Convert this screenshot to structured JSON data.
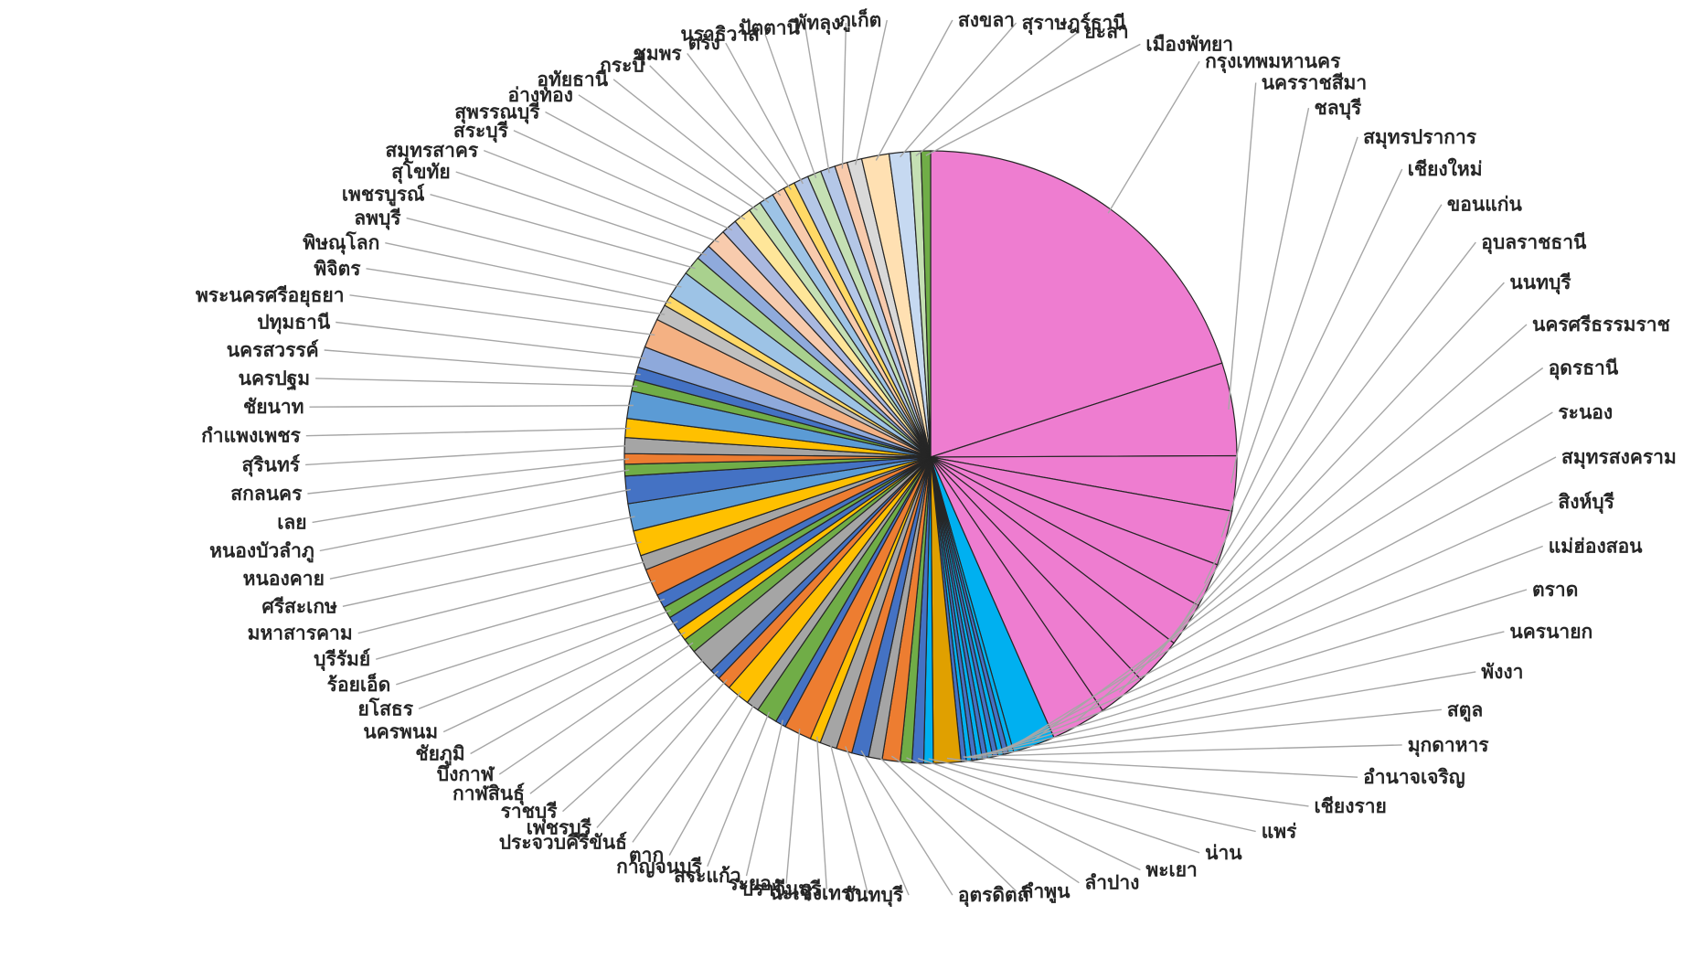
{
  "chart_data": {
    "type": "pie",
    "categories": [
      "กรุงเทพมหานคร",
      "นครราชสีมา",
      "ชลบุรี",
      "สมุทรปราการ",
      "เชียงใหม่",
      "ขอนแก่น",
      "อุบลราชธานี",
      "นนทบุรี",
      "นครศรีธรรมราช",
      "อุดรธานี",
      "ระนอง",
      "สมุทรสงคราม",
      "สิงห์บุรี",
      "แม่ฮ่องสอน",
      "ตราด",
      "นครนายก",
      "พังงา",
      "สตูล",
      "มุกดาหาร",
      "อำนาจเจริญ",
      "เชียงราย",
      "แพร่",
      "น่าน",
      "พะเยา",
      "ลำปาง",
      "ลำพูน",
      "อุตรดิตถ์",
      "จันทบุรี",
      "ฉะเชิงเทรา",
      "ปราจีนบุรี",
      "ระยอง",
      "สระแก้ว",
      "กาญจนบุรี",
      "ตาก",
      "ประจวบคีรีขันธ์",
      "เพชรบุรี",
      "ราชบุรี",
      "กาฬสินธุ์",
      "บึงกาฬ",
      "ชัยภูมิ",
      "นครพนม",
      "ยโสธร",
      "ร้อยเอ็ด",
      "บุรีรัมย์",
      "มหาสารคาม",
      "ศรีสะเกษ",
      "หนองคาย",
      "หนองบัวลำภู",
      "เลย",
      "สกลนคร",
      "สุรินทร์",
      "กำแพงเพชร",
      "ชัยนาท",
      "นครปฐม",
      "นครสวรรค์",
      "ปทุมธานี",
      "พระนครศรีอยุธยา",
      "พิจิตร",
      "พิษณุโลก",
      "ลพบุรี",
      "เพชรบูรณ์",
      "สุโขทัย",
      "สมุทรสาคร",
      "สระบุรี",
      "สุพรรณบุรี",
      "อ่างทอง",
      "อุทัยธานี",
      "กระบี่",
      "ชุมพร",
      "ตรัง",
      "นราธิวาส",
      "ปัตตานี",
      "พัทลุง",
      "ภูเก็ต",
      "สงขลา",
      "สุราษฎร์ธานี",
      "ยะลา",
      "เมืองพัทยา"
    ],
    "values": [
      18,
      4.4,
      2.6,
      2.6,
      2.1,
      2.1,
      2.3,
      2.3,
      2.6,
      2.0,
      0.25,
      0.25,
      0.25,
      0.25,
      0.25,
      0.25,
      0.25,
      0.25,
      0.25,
      0.25,
      1.3,
      0.45,
      0.55,
      0.55,
      0.85,
      0.65,
      0.8,
      0.75,
      0.8,
      0.5,
      1.3,
      0.5,
      1.0,
      0.6,
      1.1,
      0.65,
      0.5,
      1.2,
      0.7,
      0.55,
      0.7,
      0.55,
      0.65,
      1.3,
      0.7,
      1.2,
      1.3,
      1.3,
      0.55,
      0.5,
      0.75,
      0.9,
      1.3,
      0.55,
      0.6,
      1.0,
      1.4,
      0.75,
      0.5,
      1.3,
      0.9,
      0.75,
      0.95,
      0.75,
      0.85,
      0.6,
      0.7,
      0.6,
      0.55,
      0.7,
      0.65,
      0.7,
      0.6,
      0.7,
      1.3,
      1.0,
      0.5,
      0.45
    ],
    "colors": [
      "#ee7dd0",
      "#ee7dd0",
      "#ee7dd0",
      "#ee7dd0",
      "#ee7dd0",
      "#ee7dd0",
      "#ee7dd0",
      "#ee7dd0",
      "#ee7dd0",
      "#00b0f0",
      "#00b0f0",
      "#4472c4",
      "#00b0f0",
      "#4472c4",
      "#00b0f0",
      "#4472c4",
      "#00b0f0",
      "#4472c4",
      "#00b0f0",
      "#4472c4",
      "#e0a000",
      "#00b0f0",
      "#4472c4",
      "#70ad47",
      "#ed7d31",
      "#a5a5a5",
      "#4472c4",
      "#ed7d31",
      "#a5a5a5",
      "#ffc000",
      "#ed7d31",
      "#4472c4",
      "#70ad47",
      "#a5a5a5",
      "#ffc000",
      "#ed7d31",
      "#4472c4",
      "#a5a5a5",
      "#70ad47",
      "#ffc000",
      "#4472c4",
      "#70ad47",
      "#4472c4",
      "#ed7d31",
      "#a5a5a5",
      "#ffc000",
      "#5b9bd5",
      "#4472c4",
      "#70ad47",
      "#ed7d31",
      "#a5a5a5",
      "#ffc000",
      "#5b9bd5",
      "#70ad47",
      "#4472c4",
      "#8ea9db",
      "#f4b183",
      "#bfbfbf",
      "#ffd966",
      "#9dc3e6",
      "#a9d18e",
      "#8faadc",
      "#f8cbad",
      "#a9b8e0",
      "#ffe699",
      "#c5e0b4",
      "#9dc3e6",
      "#f8cbad",
      "#ffd966",
      "#b4c7e7",
      "#c5e0b4",
      "#b4c7e7",
      "#f8cbad",
      "#d9d9d9",
      "#ffe0b2",
      "#c6d9f1",
      "#c5e0b4",
      "#70ad47"
    ],
    "label_side": [
      "r",
      "r",
      "r",
      "r",
      "r",
      "r",
      "r",
      "r",
      "r",
      "r",
      "r",
      "r",
      "r",
      "r",
      "r",
      "r",
      "r",
      "r",
      "r",
      "r",
      "r",
      "r",
      "r",
      "r",
      "r",
      "r",
      "r",
      "l",
      "l",
      "l",
      "l",
      "l",
      "l",
      "l",
      "l",
      "l",
      "l",
      "l",
      "l",
      "l",
      "l",
      "l",
      "l",
      "l",
      "l",
      "l",
      "l",
      "l",
      "l",
      "l",
      "l",
      "l",
      "l",
      "l",
      "l",
      "l",
      "l",
      "l",
      "l",
      "l",
      "l",
      "l",
      "l",
      "l",
      "l",
      "l",
      "l",
      "l",
      "l",
      "l",
      "l",
      "l",
      "l",
      "l",
      "r",
      "r",
      "r",
      "r"
    ],
    "legend": "none"
  }
}
